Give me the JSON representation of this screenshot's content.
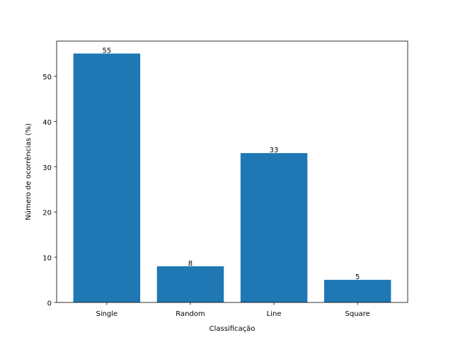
{
  "chart_data": {
    "type": "bar",
    "title": "",
    "xlabel": "Classificação",
    "ylabel": "Número de ocorrências (%)",
    "categories": [
      "Single",
      "Random",
      "Line",
      "Square"
    ],
    "values": [
      55,
      8,
      33,
      5
    ],
    "data_labels": [
      "55",
      "8",
      "33",
      "5"
    ],
    "ylim": [
      0,
      57.75
    ],
    "yticks": [
      0,
      10,
      20,
      30,
      40,
      50
    ],
    "ytick_labels": [
      "0",
      "10",
      "20",
      "30",
      "40",
      "50"
    ],
    "grid": false,
    "legend": "none",
    "bar_color": "#1f77b4"
  }
}
